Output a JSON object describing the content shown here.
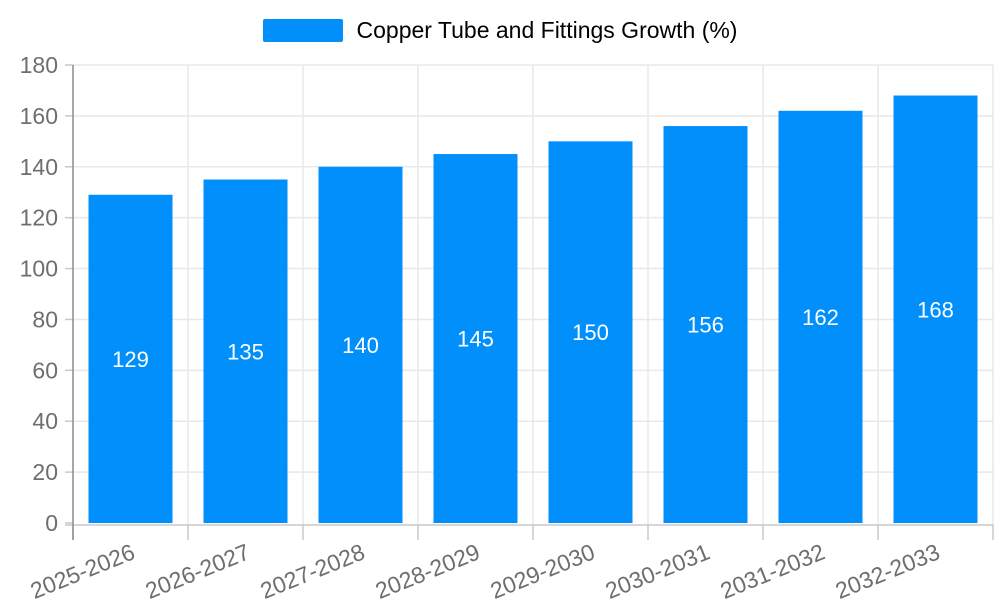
{
  "chart_data": {
    "type": "bar",
    "title": "Copper Tube and Fittings Growth (%)",
    "legend": {
      "position": "top",
      "label": "Copper Tube and Fittings Growth (%)"
    },
    "categories": [
      "2025-2026",
      "2026-2027",
      "2027-2028",
      "2028-2029",
      "2029-2030",
      "2030-2031",
      "2031-2032",
      "2032-2033"
    ],
    "series": [
      {
        "name": "Copper Tube and Fittings Growth (%)",
        "values": [
          129,
          135,
          140,
          145,
          150,
          156,
          162,
          168
        ]
      }
    ],
    "ylim": [
      0,
      180
    ],
    "yticks": [
      0,
      20,
      40,
      60,
      80,
      100,
      120,
      140,
      160,
      180
    ],
    "xlabel": "",
    "ylabel": "",
    "grid": true,
    "x_label_rotation_deg": -22,
    "colors": {
      "bar": "#008FFB",
      "value_label": "#FFFFFF",
      "axis_label": "#6E6E6E",
      "grid_line": "#E8E8E8",
      "y_axis_line": "#8C8C8C",
      "x_axis_line": "#C8C8C8"
    }
  }
}
